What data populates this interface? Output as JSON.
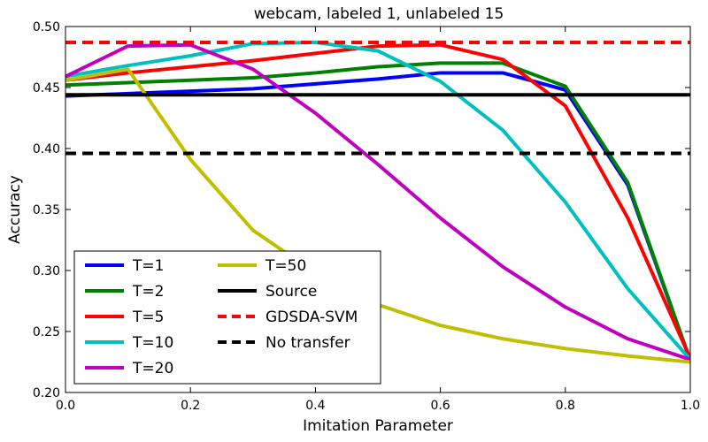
{
  "chart_data": {
    "type": "line",
    "title": "webcam, labeled 1, unlabeled 15",
    "xlabel": "Imitation Parameter",
    "ylabel": "Accuracy",
    "xlim": [
      0.0,
      1.0
    ],
    "ylim": [
      0.2,
      0.5
    ],
    "xticks": [
      "0.0",
      "0.2",
      "0.4",
      "0.6",
      "0.8",
      "1.0"
    ],
    "yticks": [
      "0.20",
      "0.25",
      "0.30",
      "0.35",
      "0.40",
      "0.45",
      "0.50"
    ],
    "grid": false,
    "legend_position": "bottom-left",
    "x": [
      0.0,
      0.1,
      0.2,
      0.3,
      0.4,
      0.5,
      0.6,
      0.7,
      0.8,
      0.9,
      1.0
    ],
    "series": [
      {
        "name": "T=1",
        "color": "#0000ff",
        "dash": "solid",
        "values": [
          0.443,
          0.445,
          0.447,
          0.449,
          0.453,
          0.457,
          0.462,
          0.462,
          0.448,
          0.37,
          0.226
        ]
      },
      {
        "name": "T=2",
        "color": "#008000",
        "dash": "solid",
        "values": [
          0.452,
          0.454,
          0.456,
          0.458,
          0.462,
          0.467,
          0.47,
          0.47,
          0.451,
          0.372,
          0.226
        ]
      },
      {
        "name": "T=5",
        "color": "#ff0000",
        "dash": "solid",
        "values": [
          0.456,
          0.462,
          0.467,
          0.472,
          0.478,
          0.484,
          0.485,
          0.473,
          0.435,
          0.343,
          0.228
        ]
      },
      {
        "name": "T=10",
        "color": "#00bfbf",
        "dash": "solid",
        "values": [
          0.459,
          0.468,
          0.476,
          0.486,
          0.487,
          0.48,
          0.455,
          0.415,
          0.356,
          0.285,
          0.227
        ]
      },
      {
        "name": "T=20",
        "color": "#bf00bf",
        "dash": "solid",
        "values": [
          0.459,
          0.484,
          0.485,
          0.465,
          0.429,
          0.387,
          0.343,
          0.303,
          0.27,
          0.244,
          0.227
        ]
      },
      {
        "name": "T=50",
        "color": "#bfbf00",
        "dash": "solid",
        "values": [
          0.456,
          0.465,
          0.391,
          0.333,
          0.298,
          0.272,
          0.255,
          0.244,
          0.236,
          0.23,
          0.225
        ]
      },
      {
        "name": "Source",
        "color": "#000000",
        "dash": "solid",
        "values": [
          0.444,
          0.444,
          0.444,
          0.444,
          0.444,
          0.444,
          0.444,
          0.444,
          0.444,
          0.444,
          0.444
        ]
      },
      {
        "name": "GDSDA-SVM",
        "color": "#ff0000",
        "dash": "dashed",
        "values": [
          0.487,
          0.487,
          0.487,
          0.487,
          0.487,
          0.487,
          0.487,
          0.487,
          0.487,
          0.487,
          0.487
        ]
      },
      {
        "name": "No transfer",
        "color": "#000000",
        "dash": "dashed",
        "values": [
          0.396,
          0.396,
          0.396,
          0.396,
          0.396,
          0.396,
          0.396,
          0.396,
          0.396,
          0.396,
          0.396
        ]
      }
    ],
    "legend_columns": [
      [
        "T=1",
        "T=2",
        "T=5",
        "T=10",
        "T=20"
      ],
      [
        "T=50",
        "Source",
        "GDSDA-SVM",
        "No transfer"
      ]
    ]
  }
}
